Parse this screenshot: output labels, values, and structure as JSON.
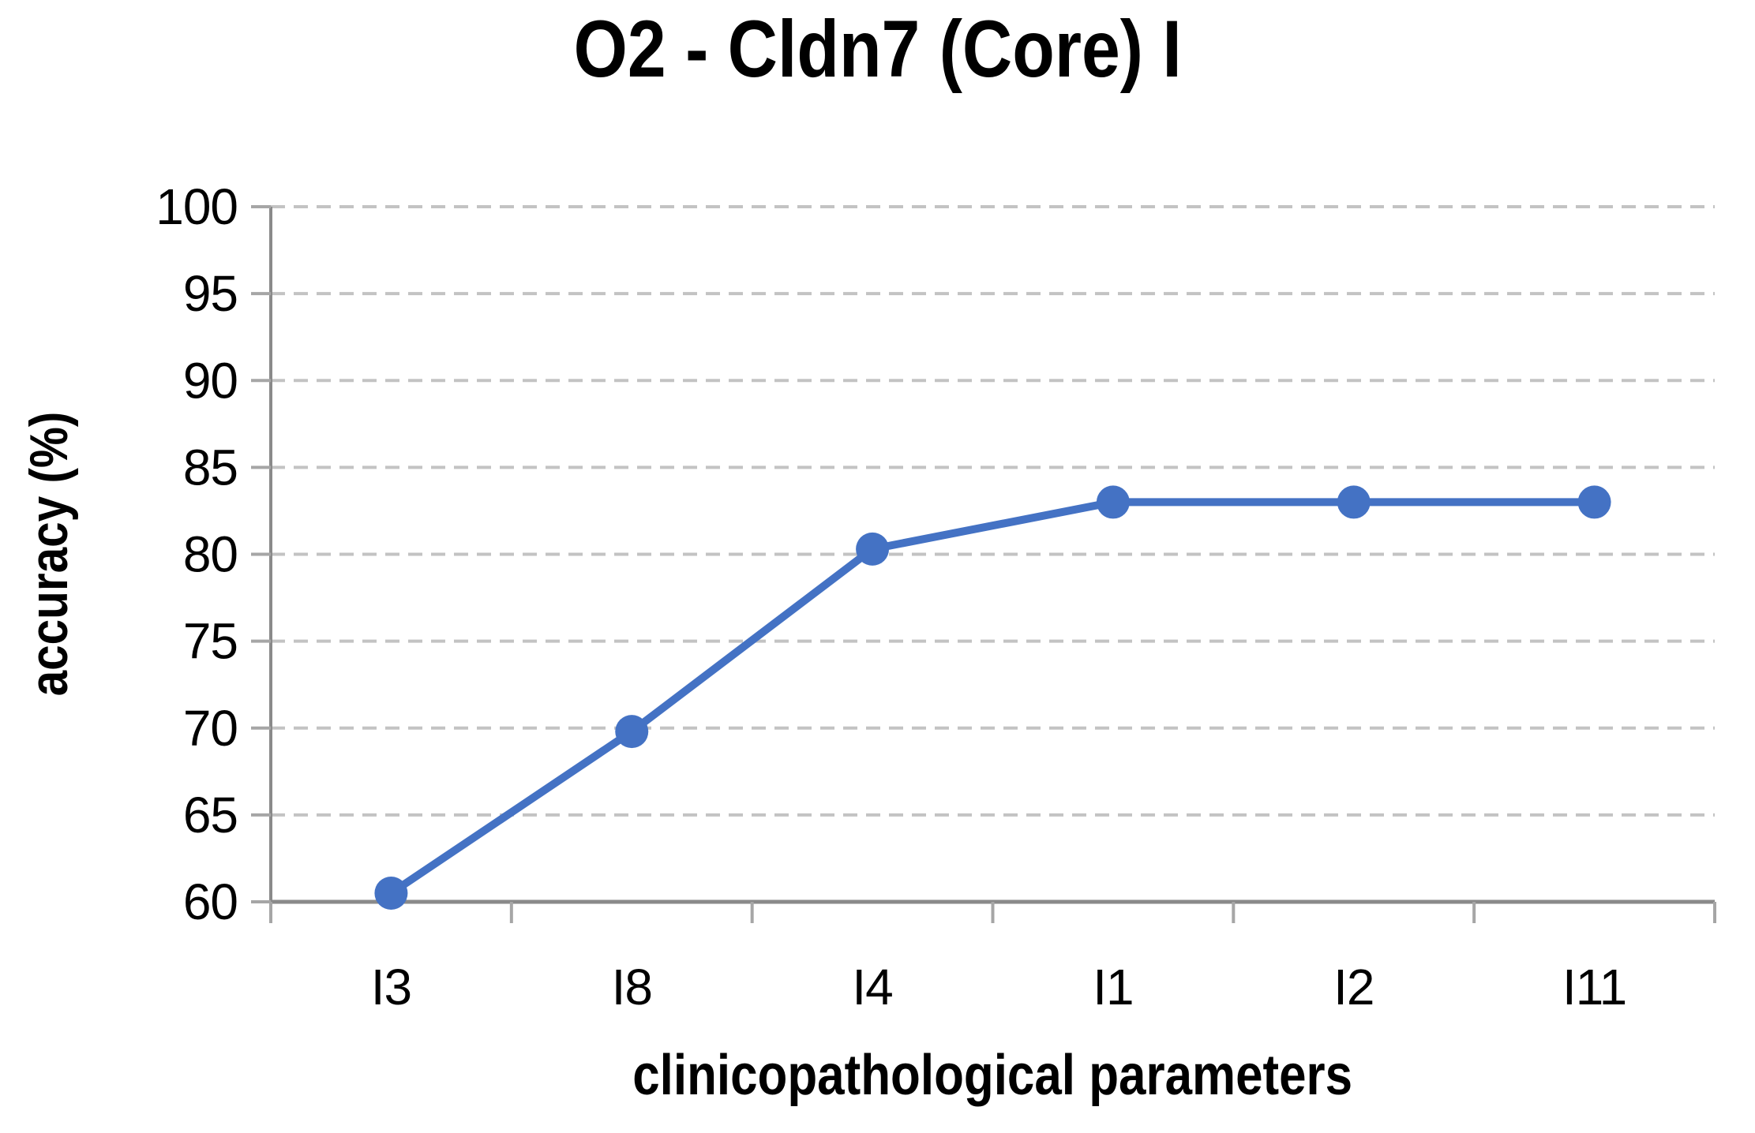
{
  "figure": {
    "background": "#ffffff"
  },
  "chart_data": {
    "type": "line",
    "title": "O2 - Cldn7 (Core) I",
    "xlabel": "clinicopathological parameters",
    "ylabel": "accuracy (%)",
    "categories": [
      "I3",
      "I8",
      "I4",
      "I1",
      "I2",
      "I11"
    ],
    "series": [
      {
        "name": "accuracy",
        "values": [
          60.5,
          69.8,
          80.3,
          83.0,
          83.0,
          83.0
        ]
      }
    ],
    "ylim": [
      60,
      100
    ],
    "yticks": [
      60,
      65,
      70,
      75,
      80,
      85,
      90,
      95,
      100
    ],
    "grid": "horizontal-dashed",
    "legend_position": "none",
    "colors": {
      "line": "#4472C4",
      "marker": "#4472C4",
      "gridline": "#c3c3c3",
      "axis": "#8a8a8a",
      "tick": "#a6a6a6",
      "text": "#000000"
    }
  }
}
